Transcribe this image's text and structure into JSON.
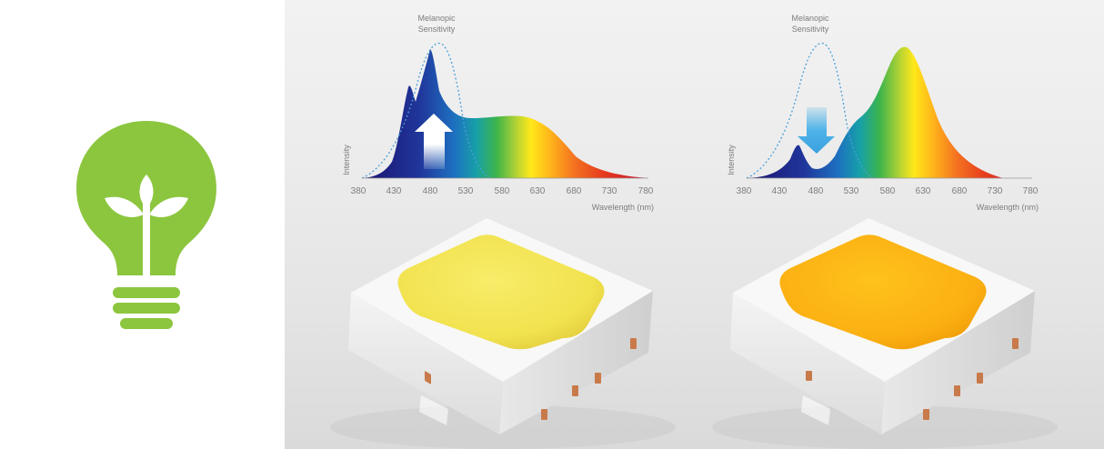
{
  "charts": [
    {
      "title_line1": "Melanopic",
      "title_line2": "Sensitivity",
      "ylabel": "Intensity",
      "xlabel": "Wavelength (nm)",
      "ticks": [
        "380",
        "430",
        "480",
        "530",
        "580",
        "630",
        "680",
        "730",
        "780"
      ],
      "arrow_direction": "up",
      "arrow_color": "#ffffff",
      "phosphor_color": "#f3e65a"
    },
    {
      "title_line1": "Melanopic",
      "title_line2": "Sensitivity",
      "ylabel": "Intensity",
      "xlabel": "Wavelength (nm)",
      "ticks": [
        "380",
        "430",
        "480",
        "530",
        "580",
        "630",
        "680",
        "730",
        "780"
      ],
      "arrow_direction": "down",
      "arrow_color": "#4fb3e8",
      "phosphor_color": "#fbb315"
    }
  ],
  "logo": {
    "icon": "lightbulb-plant-icon",
    "color": "#8cc63f"
  }
}
